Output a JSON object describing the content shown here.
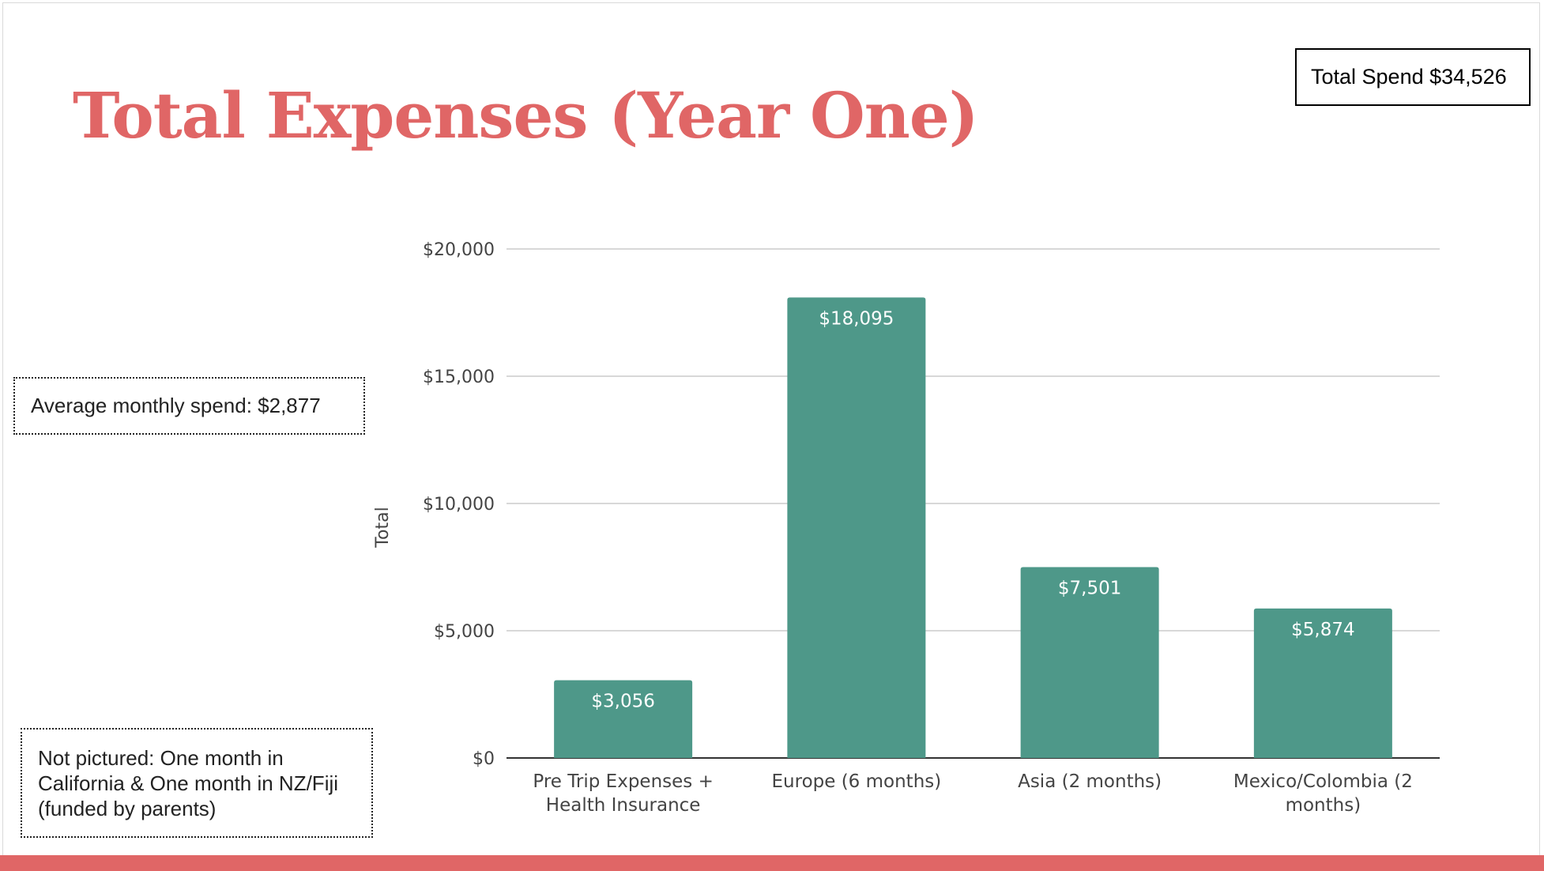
{
  "title": "Total Expenses (Year One)",
  "total_spend": "Total Spend $34,526",
  "average_note": "Average monthly spend: $2,877",
  "not_pictured_note": "Not pictured: One month in\nCalifornia & One month in NZ/Fiji\n(funded by parents)",
  "colors": {
    "title": "#e06666",
    "bar": "#4e9889",
    "footer": "#e06666",
    "grid": "#cccccc",
    "axis_text": "#444444"
  },
  "chart_data": {
    "type": "bar",
    "categories": [
      [
        "Pre Trip Expenses +",
        "Health Insurance"
      ],
      [
        "Europe (6 months)"
      ],
      [
        "Asia (2 months)"
      ],
      [
        "Mexico/Colombia (2",
        "months)"
      ]
    ],
    "values": [
      3056,
      18095,
      7501,
      5874
    ],
    "value_labels": [
      "$3,056",
      "$18,095",
      "$7,501",
      "$5,874"
    ],
    "ylabel": "Total",
    "ylim": [
      0,
      20000
    ],
    "yticks": [
      0,
      5000,
      10000,
      15000,
      20000
    ],
    "ytick_labels": [
      "$0",
      "$5,000",
      "$10,000",
      "$15,000",
      "$20,000"
    ],
    "grid": true,
    "legend": false
  }
}
